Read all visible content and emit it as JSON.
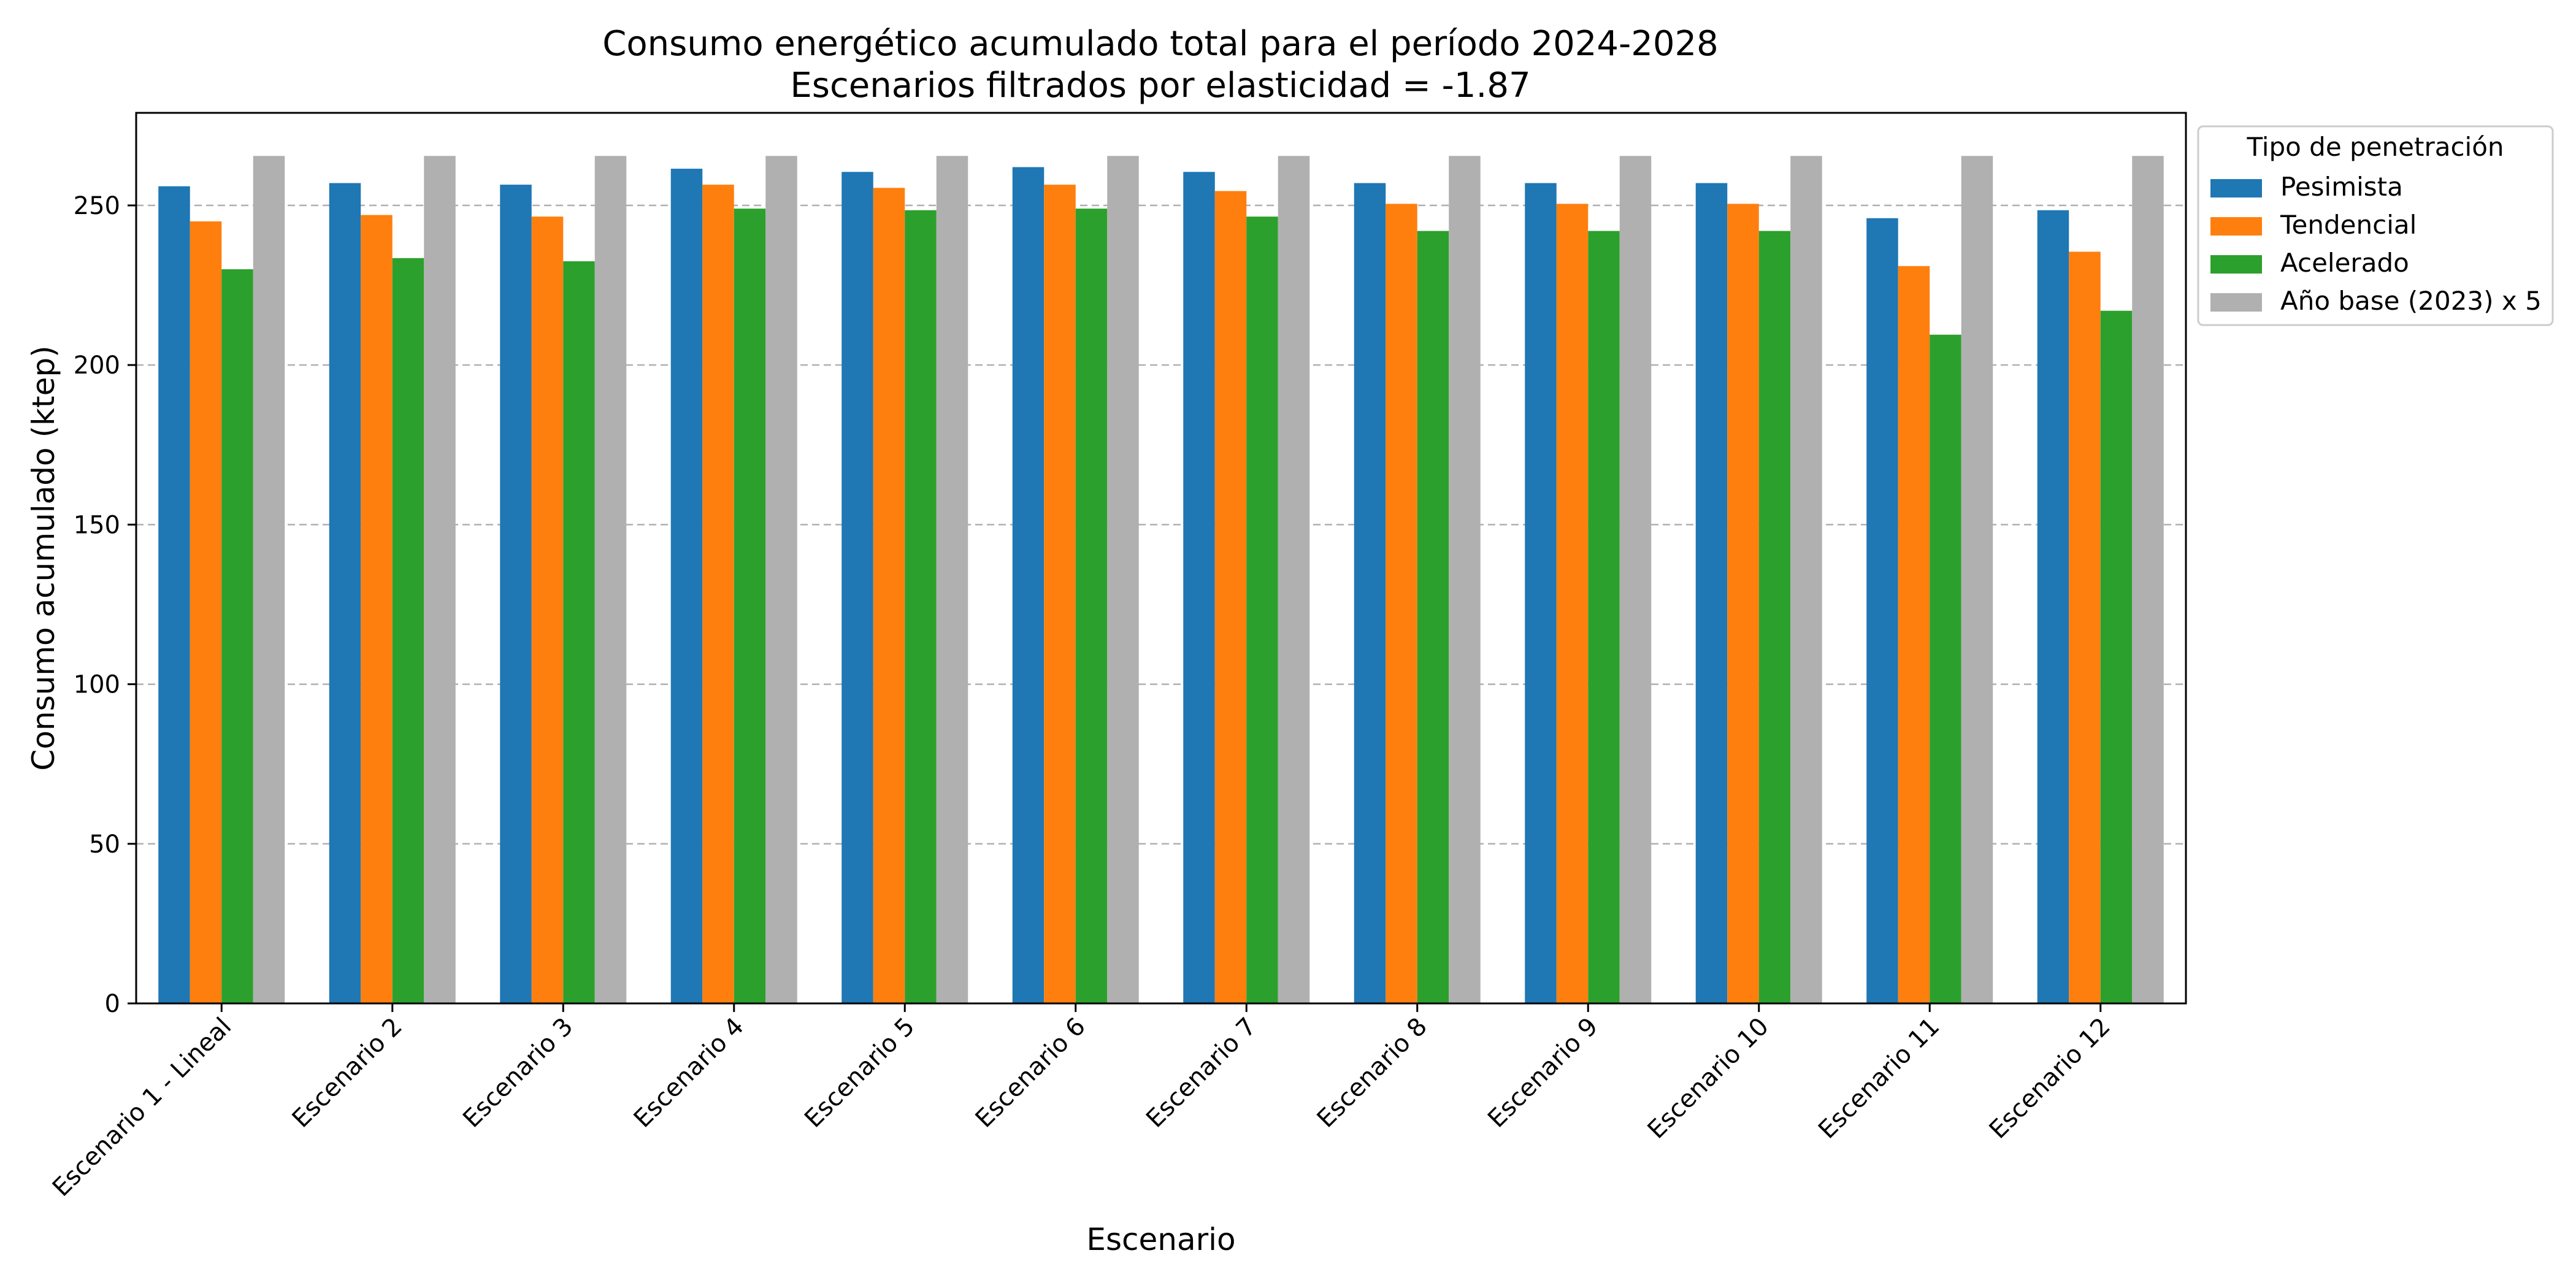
{
  "chart_data": {
    "type": "bar",
    "title": "Consumo energético acumulado total para el período 2024-2028",
    "subtitle": "Escenarios filtrados por elasticidad = -1.87",
    "xlabel": "Escenario",
    "ylabel": "Consumo acumulado (ktep)",
    "ylim": [
      0,
      279
    ],
    "yticks": [
      0,
      50,
      100,
      150,
      200,
      250
    ],
    "grid": "y-dashed",
    "legend": {
      "title": "Tipo de penetración",
      "placement": "outside-right-top"
    },
    "categories": [
      "Escenario 1 - Lineal",
      "Escenario 2",
      "Escenario 3",
      "Escenario 4",
      "Escenario 5",
      "Escenario 6",
      "Escenario 7",
      "Escenario 8",
      "Escenario 9",
      "Escenario 10",
      "Escenario 11",
      "Escenario 12"
    ],
    "series": [
      {
        "name": "Pesimista",
        "color": "#1f77b4",
        "values": [
          256,
          257,
          256.5,
          261.5,
          260.5,
          262,
          260.5,
          257,
          257,
          257,
          246,
          248.5
        ]
      },
      {
        "name": "Tendencial",
        "color": "#ff7f0e",
        "values": [
          245,
          247,
          246.5,
          256.5,
          255.5,
          256.5,
          254.5,
          250.5,
          250.5,
          250.5,
          231,
          235.5
        ]
      },
      {
        "name": "Acelerado",
        "color": "#2ca02c",
        "values": [
          230,
          233.5,
          232.5,
          249,
          248.5,
          249,
          246.5,
          242,
          242,
          242,
          209.5,
          217
        ]
      },
      {
        "name": "Año base (2023) x 5",
        "color": "#b0b0b0",
        "values": [
          265.5,
          265.5,
          265.5,
          265.5,
          265.5,
          265.5,
          265.5,
          265.5,
          265.5,
          265.5,
          265.5,
          265.5
        ]
      }
    ]
  }
}
